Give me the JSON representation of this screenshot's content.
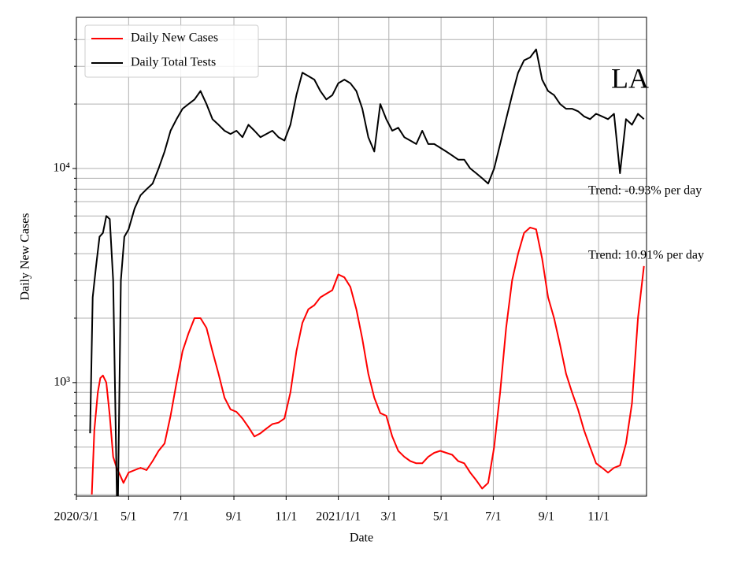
{
  "chart_data": {
    "type": "line",
    "title": "LA",
    "xlabel": "Date",
    "ylabel": "Daily New Cases",
    "annotations": [
      "Trend: -0.93% per day",
      "Trend: 10.91% per day"
    ],
    "log_y": true,
    "grid": true,
    "legend": "upper left",
    "xlim": [
      "2020-03-01",
      "2021-12-27"
    ],
    "xticks": [
      {
        "value": "2020-03-01",
        "label": "2020/3/1"
      },
      {
        "value": "2020-05-01",
        "label": "5/1"
      },
      {
        "value": "2020-07-01",
        "label": "7/1"
      },
      {
        "value": "2020-09-01",
        "label": "9/1"
      },
      {
        "value": "2020-11-01",
        "label": "11/1"
      },
      {
        "value": "2021-01-01",
        "label": "2021/1/1"
      },
      {
        "value": "2021-03-01",
        "label": "3/1"
      },
      {
        "value": "2021-05-01",
        "label": "5/1"
      },
      {
        "value": "2021-07-01",
        "label": "7/1"
      },
      {
        "value": "2021-09-01",
        "label": "9/1"
      },
      {
        "value": "2021-11-01",
        "label": "11/1"
      }
    ],
    "ylim": [
      295,
      50800
    ],
    "yticks": [
      {
        "value": 1000,
        "label": "10³"
      },
      {
        "value": 10000,
        "label": "10⁴"
      }
    ],
    "yminorticks": [
      300,
      400,
      500,
      600,
      700,
      800,
      900,
      2000,
      3000,
      4000,
      5000,
      6000,
      7000,
      8000,
      9000,
      20000,
      30000,
      40000
    ],
    "series": [
      {
        "name": "Daily New Cases",
        "color": "#ff0000",
        "x": [
          "2020-03-19",
          "2020-03-22",
          "2020-03-26",
          "2020-03-29",
          "2020-04-01",
          "2020-04-05",
          "2020-04-09",
          "2020-04-13",
          "2020-04-17",
          "2020-04-21",
          "2020-04-25",
          "2020-05-01",
          "2020-05-08",
          "2020-05-15",
          "2020-05-22",
          "2020-05-29",
          "2020-06-05",
          "2020-06-12",
          "2020-06-19",
          "2020-06-26",
          "2020-07-03",
          "2020-07-10",
          "2020-07-17",
          "2020-07-24",
          "2020-07-31",
          "2020-08-07",
          "2020-08-14",
          "2020-08-21",
          "2020-08-28",
          "2020-09-04",
          "2020-09-11",
          "2020-09-18",
          "2020-09-25",
          "2020-10-02",
          "2020-10-09",
          "2020-10-16",
          "2020-10-23",
          "2020-10-30",
          "2020-11-06",
          "2020-11-13",
          "2020-11-20",
          "2020-11-27",
          "2020-12-04",
          "2020-12-11",
          "2020-12-18",
          "2020-12-25",
          "2021-01-01",
          "2021-01-08",
          "2021-01-15",
          "2021-01-22",
          "2021-01-29",
          "2021-02-05",
          "2021-02-12",
          "2021-02-19",
          "2021-02-26",
          "2021-03-05",
          "2021-03-12",
          "2021-03-19",
          "2021-03-26",
          "2021-04-02",
          "2021-04-09",
          "2021-04-16",
          "2021-04-23",
          "2021-04-30",
          "2021-05-07",
          "2021-05-14",
          "2021-05-21",
          "2021-05-28",
          "2021-06-04",
          "2021-06-11",
          "2021-06-18",
          "2021-06-25",
          "2021-07-02",
          "2021-07-09",
          "2021-07-16",
          "2021-07-23",
          "2021-07-30",
          "2021-08-06",
          "2021-08-13",
          "2021-08-20",
          "2021-08-27",
          "2021-09-03",
          "2021-09-10",
          "2021-09-17",
          "2021-09-24",
          "2021-10-01",
          "2021-10-08",
          "2021-10-15",
          "2021-10-22",
          "2021-10-29",
          "2021-11-05",
          "2021-11-12",
          "2021-11-19",
          "2021-11-26",
          "2021-12-03",
          "2021-12-10",
          "2021-12-17",
          "2021-12-24"
        ],
        "values": [
          300,
          600,
          900,
          1050,
          1080,
          1000,
          700,
          450,
          400,
          370,
          340,
          380,
          390,
          400,
          390,
          430,
          480,
          520,
          700,
          1000,
          1400,
          1700,
          2000,
          2000,
          1800,
          1400,
          1100,
          850,
          750,
          730,
          680,
          620,
          560,
          580,
          610,
          640,
          650,
          680,
          900,
          1400,
          1900,
          2200,
          2300,
          2500,
          2600,
          2700,
          3200,
          3100,
          2800,
          2200,
          1600,
          1100,
          850,
          720,
          700,
          560,
          480,
          450,
          430,
          420,
          420,
          450,
          470,
          480,
          470,
          460,
          430,
          420,
          380,
          350,
          320,
          340,
          500,
          900,
          1800,
          3000,
          4000,
          5000,
          5300,
          5200,
          3800,
          2500,
          2000,
          1500,
          1100,
          900,
          750,
          600,
          500,
          420,
          400,
          380,
          400,
          410,
          520,
          800,
          2000,
          3500
        ]
      },
      {
        "name": "Daily Total Tests",
        "color": "#000000",
        "x": [
          "2020-03-17",
          "2020-03-20",
          "2020-03-24",
          "2020-03-28",
          "2020-04-01",
          "2020-04-05",
          "2020-04-09",
          "2020-04-13",
          "2020-04-18",
          "2020-04-22",
          "2020-04-26",
          "2020-05-01",
          "2020-05-08",
          "2020-05-15",
          "2020-05-22",
          "2020-05-29",
          "2020-06-05",
          "2020-06-12",
          "2020-06-19",
          "2020-06-26",
          "2020-07-03",
          "2020-07-10",
          "2020-07-17",
          "2020-07-24",
          "2020-07-31",
          "2020-08-07",
          "2020-08-14",
          "2020-08-21",
          "2020-08-28",
          "2020-09-04",
          "2020-09-11",
          "2020-09-18",
          "2020-09-25",
          "2020-10-02",
          "2020-10-09",
          "2020-10-16",
          "2020-10-23",
          "2020-10-30",
          "2020-11-06",
          "2020-11-13",
          "2020-11-20",
          "2020-11-27",
          "2020-12-04",
          "2020-12-11",
          "2020-12-18",
          "2020-12-25",
          "2021-01-01",
          "2021-01-08",
          "2021-01-15",
          "2021-01-22",
          "2021-01-29",
          "2021-02-05",
          "2021-02-12",
          "2021-02-19",
          "2021-02-26",
          "2021-03-05",
          "2021-03-12",
          "2021-03-19",
          "2021-03-26",
          "2021-04-02",
          "2021-04-09",
          "2021-04-16",
          "2021-04-23",
          "2021-04-30",
          "2021-05-07",
          "2021-05-14",
          "2021-05-21",
          "2021-05-28",
          "2021-06-04",
          "2021-06-11",
          "2021-06-18",
          "2021-06-25",
          "2021-07-02",
          "2021-07-09",
          "2021-07-16",
          "2021-07-23",
          "2021-07-30",
          "2021-08-06",
          "2021-08-13",
          "2021-08-20",
          "2021-08-27",
          "2021-09-03",
          "2021-09-10",
          "2021-09-17",
          "2021-09-24",
          "2021-10-01",
          "2021-10-08",
          "2021-10-15",
          "2021-10-22",
          "2021-10-29",
          "2021-11-05",
          "2021-11-12",
          "2021-11-19",
          "2021-11-26",
          "2021-12-03",
          "2021-12-10",
          "2021-12-17",
          "2021-12-24"
        ],
        "values": [
          580,
          2500,
          3500,
          4800,
          5000,
          6000,
          5800,
          3000,
          200,
          3000,
          4800,
          5200,
          6500,
          7500,
          8000,
          8500,
          10000,
          12000,
          15000,
          17000,
          19000,
          20000,
          21000,
          23000,
          20000,
          17000,
          16000,
          15000,
          14500,
          15000,
          14000,
          16000,
          15000,
          14000,
          14500,
          15000,
          14000,
          13500,
          16000,
          22000,
          28000,
          27000,
          26000,
          23000,
          21000,
          22000,
          25000,
          26000,
          25000,
          23000,
          19000,
          14000,
          12000,
          20000,
          17000,
          15000,
          15500,
          14000,
          13500,
          13000,
          15000,
          13000,
          13000,
          12500,
          12000,
          11500,
          11000,
          11000,
          10000,
          9500,
          9000,
          8500,
          10000,
          13000,
          17000,
          22000,
          28000,
          32000,
          33000,
          36000,
          26000,
          23000,
          22000,
          20000,
          19000,
          19000,
          18500,
          17500,
          17000,
          18000,
          17500,
          17000,
          18000,
          9500,
          17000,
          16000,
          18000,
          17000
        ]
      }
    ]
  }
}
